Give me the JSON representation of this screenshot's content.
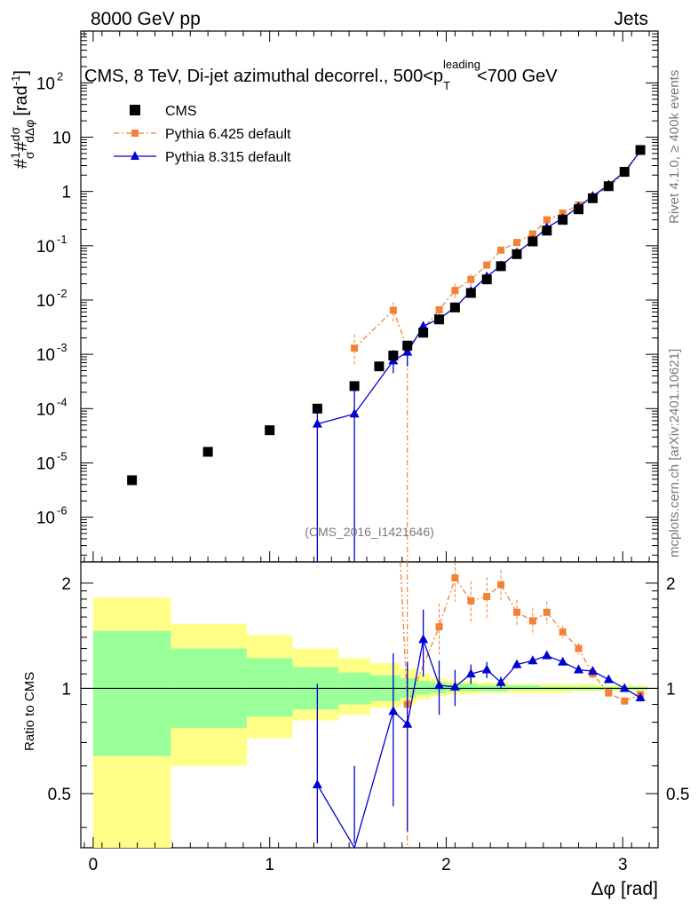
{
  "header": {
    "energy_label": "8000 GeV pp",
    "category_label": "Jets"
  },
  "side_text": {
    "rivet": "Rivet 4.1.0, ≥ 400k events",
    "mcplots": "mcplots.cern.ch [arXiv:2401.10621]"
  },
  "chart_data": {
    "type": "scatter",
    "title": "CMS, 8 TeV, Di-jet azimuthal decorrel., 500<p_T^leading<700 GeV",
    "title_main": "CMS, 8 TeV, Di-jet azimuthal decorrel., 500<p",
    "title_sub": "T",
    "title_sup": "leading",
    "title_tail": "<700 GeV",
    "watermark": "(CMS_2016_I1421646)",
    "xlabel": "Δφ [rad]",
    "ylabel_top": "#1/σ #dσ/dΔφ [rad⁻¹]",
    "ylabel_main": "#",
    "ylabel_unit": "[rad",
    "ylabel_exp": "-1",
    "ylabel_tail": "]",
    "ylabel_bottom": "Ratio to CMS",
    "xlim": [
      -0.07,
      3.2
    ],
    "ylim_top": [
      1.5e-07,
      900
    ],
    "ylim_ratio": [
      0.35,
      2.3
    ],
    "x_ticks": [
      0,
      1,
      2,
      3
    ],
    "x_tick_labels": [
      "0",
      "1",
      "2",
      "3"
    ],
    "y_ticks_top": [
      1e-06,
      1e-05,
      0.0001,
      0.001,
      0.01,
      0.1,
      1,
      10,
      100
    ],
    "y_tick_labels_top": [
      {
        "base": "10",
        "exp": "-6"
      },
      {
        "base": "10",
        "exp": "-5"
      },
      {
        "base": "10",
        "exp": "-4"
      },
      {
        "base": "10",
        "exp": "-3"
      },
      {
        "base": "10",
        "exp": "-2"
      },
      {
        "base": "10",
        "exp": "-1"
      },
      {
        "base": "1",
        "exp": ""
      },
      {
        "base": "10",
        "exp": ""
      },
      {
        "base": "10",
        "exp": "2"
      }
    ],
    "y_ticks_ratio": [
      0.5,
      1,
      2
    ],
    "y_tick_labels_ratio": [
      "0.5",
      "1",
      "2"
    ],
    "legend": [
      {
        "name": "CMS",
        "marker": "square",
        "color": "#000000"
      },
      {
        "name": "Pythia 6.425 default",
        "marker": "square-dashed",
        "color": "#f28236"
      },
      {
        "name": "Pythia 8.315 default",
        "marker": "triangle",
        "color": "#0000d0"
      }
    ],
    "colors": {
      "cms": "#000000",
      "pythia6": "#f28236",
      "pythia8": "#0000d0",
      "band_inner": "#99ff99",
      "band_outer": "#ffff88"
    },
    "cms": {
      "x": [
        0.22,
        0.65,
        1.0,
        1.27,
        1.48,
        1.62,
        1.7,
        1.78,
        1.87,
        1.96,
        2.05,
        2.14,
        2.23,
        2.31,
        2.4,
        2.49,
        2.57,
        2.66,
        2.75,
        2.83,
        2.92,
        3.01,
        3.1
      ],
      "y": [
        4.8e-06,
        1.6e-05,
        4e-05,
        0.0001,
        0.00026,
        0.0006,
        0.00095,
        0.00145,
        0.0025,
        0.0044,
        0.0073,
        0.0135,
        0.024,
        0.042,
        0.07,
        0.12,
        0.19,
        0.3,
        0.47,
        0.75,
        1.25,
        2.3,
        5.8
      ]
    },
    "pythia6": {
      "x": [
        1.48,
        1.7,
        1.78,
        1.96,
        2.05,
        2.14,
        2.23,
        2.31,
        2.4,
        2.49,
        2.57,
        2.66,
        2.75,
        2.83,
        2.92,
        3.01,
        3.1
      ],
      "y": [
        0.0013,
        0.0065,
        0.0013,
        0.0066,
        0.015,
        0.024,
        0.044,
        0.083,
        0.115,
        0.165,
        0.3,
        0.4,
        0.56,
        0.79,
        1.22,
        2.15,
        5.6
      ],
      "ratio": [
        null,
        null,
        0.9,
        1.5,
        2.07,
        1.78,
        1.83,
        1.98,
        1.65,
        1.56,
        1.65,
        1.45,
        1.3,
        1.1,
        0.97,
        0.92,
        0.96
      ],
      "ratio_err": [
        0,
        0,
        0,
        0.25,
        0.3,
        0.25,
        0.25,
        0.2,
        0.14,
        0.14,
        0.12,
        0.06,
        0.05,
        0.03,
        0.02,
        0.02,
        0.01
      ]
    },
    "pythia8": {
      "x": [
        1.27,
        1.48,
        1.7,
        1.78,
        1.87,
        1.96,
        2.05,
        2.14,
        2.23,
        2.31,
        2.4,
        2.49,
        2.57,
        2.66,
        2.75,
        2.83,
        2.92,
        3.01,
        3.1
      ],
      "y": [
        5.2e-05,
        8e-05,
        0.00076,
        0.0011,
        0.0033,
        0.0045,
        0.0073,
        0.0145,
        0.027,
        0.043,
        0.074,
        0.125,
        0.215,
        0.32,
        0.52,
        0.82,
        1.32,
        2.3,
        5.5
      ],
      "ratio": [
        0.53,
        0.3,
        0.86,
        0.79,
        1.38,
        1.02,
        1.01,
        1.1,
        1.13,
        1.04,
        1.17,
        1.2,
        1.24,
        1.19,
        1.13,
        1.12,
        1.06,
        1.0,
        0.94
      ],
      "ratio_err": [
        0.5,
        0.3,
        0.4,
        0.4,
        0.3,
        0.18,
        0.12,
        0.07,
        0.06,
        0.04,
        0.03,
        0.03,
        0.02,
        0.02,
        0.02,
        0.01,
        0.01,
        0.01,
        0.01
      ]
    },
    "bands": {
      "edges": [
        0.0,
        0.44,
        0.87,
        1.13,
        1.39,
        1.57,
        1.74,
        1.83,
        1.91,
        2.0,
        2.18,
        2.35,
        2.53,
        2.71,
        2.88,
        3.05,
        3.14
      ],
      "inner_lo": [
        0.64,
        0.77,
        0.83,
        0.87,
        0.9,
        0.92,
        0.94,
        0.96,
        0.97,
        0.98,
        0.98,
        0.99,
        0.99,
        0.99,
        0.99,
        0.99
      ],
      "inner_hi": [
        1.46,
        1.3,
        1.22,
        1.15,
        1.11,
        1.09,
        1.07,
        1.05,
        1.04,
        1.03,
        1.02,
        1.02,
        1.01,
        1.01,
        1.01,
        1.01
      ],
      "outer_lo": [
        0.35,
        0.6,
        0.72,
        0.81,
        0.84,
        0.88,
        0.9,
        0.93,
        0.95,
        0.96,
        0.97,
        0.97,
        0.97,
        0.98,
        0.98,
        0.98
      ],
      "outer_hi": [
        1.82,
        1.53,
        1.42,
        1.3,
        1.22,
        1.18,
        1.14,
        1.1,
        1.07,
        1.05,
        1.04,
        1.03,
        1.03,
        1.03,
        1.02,
        1.02
      ]
    }
  }
}
